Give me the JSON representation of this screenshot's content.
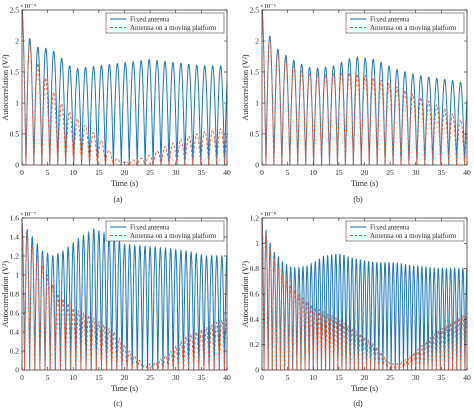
{
  "colors": {
    "fixed": "#1f77b4",
    "moving": "#e8603c",
    "axis": "#262626",
    "bg": "#ffffff"
  },
  "legend": {
    "fixed": "Fixed antenna",
    "moving": "Antenna on a moving platform",
    "placement": "top-right"
  },
  "chart_data": [
    {
      "type": "line",
      "panel_label": "(a)",
      "xlabel": "Time (s)",
      "ylabel": "Autocorrelation (V²)",
      "exponent": "×10⁻⁴",
      "xlim": [
        0,
        40
      ],
      "ylim": [
        0,
        2.5
      ],
      "xticks": [
        0,
        5,
        10,
        15,
        20,
        25,
        30,
        35,
        40
      ],
      "yticks": [
        0,
        0.5,
        1,
        1.5,
        2,
        2.5
      ],
      "ytick_labels": [
        "0",
        "0.5",
        "1",
        "1.5",
        "2",
        "2.5"
      ],
      "grid": false,
      "series": [
        {
          "name": "Fixed antenna",
          "style": "solid",
          "period_s": 1.55,
          "envelope": {
            "t": [
              0,
              2,
              4,
              6,
              10,
              15,
              20,
              25,
              30,
              35,
              40
            ],
            "v": [
              2.5,
              1.9,
              1.9,
              1.85,
              1.55,
              1.6,
              1.65,
              1.7,
              1.65,
              1.6,
              1.6
            ]
          }
        },
        {
          "name": "Antenna on a moving platform",
          "style": "dashed",
          "period_s": 1.55,
          "envelope": {
            "t": [
              0,
              2,
              4,
              7,
              10,
              13,
              16,
              18,
              20,
              24,
              28,
              32,
              36,
              40
            ],
            "v": [
              2.5,
              1.8,
              1.5,
              1.05,
              0.8,
              0.6,
              0.35,
              0.12,
              0.05,
              0.12,
              0.3,
              0.45,
              0.55,
              0.6
            ]
          }
        }
      ]
    },
    {
      "type": "line",
      "panel_label": "(b)",
      "xlabel": "Time (s)",
      "ylabel": "Autocorrelation (V²)",
      "exponent": "×10⁻⁶",
      "xlim": [
        0,
        40
      ],
      "ylim": [
        0,
        2.5
      ],
      "xticks": [
        0,
        5,
        10,
        15,
        20,
        25,
        30,
        35,
        40
      ],
      "yticks": [
        0,
        0.5,
        1,
        1.5,
        2,
        2.5
      ],
      "ytick_labels": [
        "0",
        "0.5",
        "1",
        "1.5",
        "2",
        "2.5"
      ],
      "grid": false,
      "series": [
        {
          "name": "Fixed antenna",
          "style": "solid",
          "period_s": 1.55,
          "envelope": {
            "t": [
              0,
              2,
              4,
              7,
              10,
              14,
              18,
              22,
              26,
              30,
              34,
              38,
              40
            ],
            "v": [
              2.5,
              1.95,
              1.8,
              1.65,
              1.55,
              1.6,
              1.75,
              1.7,
              1.55,
              1.45,
              1.4,
              1.35,
              1.3
            ]
          }
        },
        {
          "name": "Antenna on a moving platform",
          "style": "dashed",
          "period_s": 1.55,
          "envelope": {
            "t": [
              0,
              2,
              5,
              8,
              12,
              16,
              20,
              24,
              28,
              32,
              36,
              40
            ],
            "v": [
              2.5,
              1.9,
              1.65,
              1.5,
              1.45,
              1.5,
              1.45,
              1.35,
              1.2,
              1.05,
              0.9,
              0.65
            ]
          }
        }
      ]
    },
    {
      "type": "line",
      "panel_label": "(c)",
      "xlabel": "Time (s)",
      "ylabel": "Autocorrelation (V²)",
      "exponent": "×10⁻⁷",
      "xlim": [
        0,
        40
      ],
      "ylim": [
        0,
        1.6
      ],
      "xticks": [
        0,
        5,
        10,
        15,
        20,
        25,
        30,
        35,
        40
      ],
      "yticks": [
        0,
        0.2,
        0.4,
        0.6,
        0.8,
        1,
        1.2,
        1.4,
        1.6
      ],
      "ytick_labels": [
        "0",
        "0.2",
        "0.4",
        "0.6",
        "0.8",
        "1",
        "1.2",
        "1.4",
        "1.6"
      ],
      "grid": false,
      "series": [
        {
          "name": "Fixed antenna",
          "style": "solid",
          "period_s": 1.0,
          "envelope": {
            "t": [
              0,
              2,
              4,
              6,
              8,
              11,
              14,
              17,
              20,
              24,
              28,
              32,
              36,
              40
            ],
            "v": [
              1.55,
              1.4,
              1.25,
              1.2,
              1.25,
              1.38,
              1.48,
              1.42,
              1.32,
              1.3,
              1.28,
              1.25,
              1.2,
              1.2
            ]
          }
        },
        {
          "name": "Antenna on a moving platform",
          "style": "dashed",
          "period_s": 1.0,
          "envelope": {
            "t": [
              0,
              2,
              4,
              7,
              10,
              14,
              18,
              21,
              24,
              26,
              28,
              32,
              36,
              40
            ],
            "v": [
              1.55,
              1.3,
              1.1,
              0.8,
              0.65,
              0.55,
              0.4,
              0.2,
              0.05,
              0.08,
              0.15,
              0.35,
              0.45,
              0.55
            ]
          }
        }
      ]
    },
    {
      "type": "line",
      "panel_label": "(d)",
      "xlabel": "Time (s)",
      "ylabel": "Autocorrelation (V²)",
      "exponent": "×10⁻⁸",
      "xlim": [
        0,
        40
      ],
      "ylim": [
        0,
        1.2
      ],
      "xticks": [
        0,
        5,
        10,
        15,
        20,
        25,
        30,
        35,
        40
      ],
      "yticks": [
        0,
        0.2,
        0.4,
        0.6,
        0.8,
        1,
        1.2
      ],
      "ytick_labels": [
        "0",
        "0.2",
        "0.4",
        "0.6",
        "0.8",
        "1",
        "1.2"
      ],
      "grid": false,
      "series": [
        {
          "name": "Fixed antenna",
          "style": "solid",
          "period_s": 0.8,
          "envelope": {
            "t": [
              0,
              2,
              4,
              6,
              9,
              12,
              15,
              18,
              22,
              26,
              30,
              34,
              38,
              40
            ],
            "v": [
              1.2,
              0.95,
              0.85,
              0.8,
              0.82,
              0.9,
              0.92,
              0.88,
              0.85,
              0.85,
              0.82,
              0.8,
              0.8,
              0.8
            ]
          }
        },
        {
          "name": "Antenna on a moving platform",
          "style": "dashed",
          "period_s": 0.8,
          "envelope": {
            "t": [
              0,
              2,
              4,
              7,
              10,
              14,
              18,
              22,
              25,
              27,
              30,
              34,
              38,
              40
            ],
            "v": [
              1.2,
              0.9,
              0.75,
              0.6,
              0.5,
              0.42,
              0.32,
              0.2,
              0.05,
              0.05,
              0.15,
              0.3,
              0.4,
              0.45
            ]
          }
        }
      ]
    }
  ]
}
